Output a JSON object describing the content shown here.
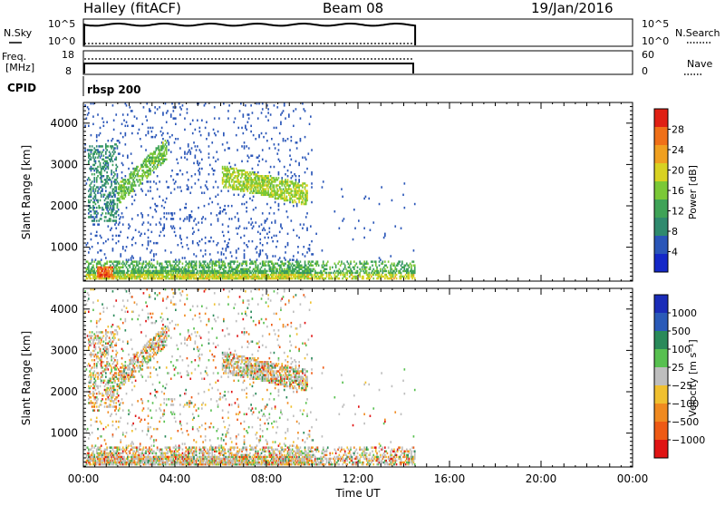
{
  "header": {
    "radar": "Halley (fitACF)",
    "beam": "Beam 08",
    "date": "19/Jan/2016"
  },
  "top_panels": {
    "nsky_label": "N.Sky",
    "nsky_ticks": [
      "10^5",
      "10^0"
    ],
    "nsearch_label": "N.Search",
    "freq_label_1": "Freq.",
    "freq_label_2": "[MHz]",
    "freq_ticks": [
      "18",
      "8"
    ],
    "nave_ticks": [
      "60",
      "0"
    ],
    "nave_label": "Nave",
    "cpid_label": "CPID",
    "cpid_value": "rbsp 200"
  },
  "colors": {
    "power": [
      "#1428c8",
      "#2a56b8",
      "#2f8a6e",
      "#3fa357",
      "#7bc837",
      "#d8d222",
      "#f0a020",
      "#f07018",
      "#e02014"
    ],
    "velocity": [
      "#e01414",
      "#ee5a14",
      "#f08a20",
      "#f0c030",
      "#bebebe",
      "#58c050",
      "#2a8a5a",
      "#2a5ab8",
      "#1a2cb8"
    ]
  },
  "chart_data": [
    {
      "type": "heatmap",
      "quantity": "power",
      "title": "",
      "xlabel": "",
      "ylabel": "Slant Range [km]",
      "xlim_hours": [
        0,
        24
      ],
      "ylim_km": [
        180,
        4500
      ],
      "x_ticks": [
        "00:00",
        "04:00",
        "08:00",
        "12:00",
        "16:00",
        "20:00",
        "00:00"
      ],
      "y_ticks": [
        1000,
        2000,
        3000,
        4000
      ],
      "colorbar": {
        "label": "Power [dB]",
        "ticks": [
          "28",
          "24",
          "20",
          "16",
          "12",
          "8",
          "4"
        ],
        "range_db": [
          0,
          32
        ]
      },
      "data_extent_hours": [
        0,
        14.5
      ],
      "features": [
        {
          "region": "near-range band",
          "t_start": 0.1,
          "t_end": 14.5,
          "range_km": [
            200,
            650
          ],
          "level_db": 16
        },
        {
          "region": "far-range streak A",
          "t_start": 1.0,
          "t_end": 3.6,
          "range_km": [
            2000,
            3400
          ],
          "level_db": 14
        },
        {
          "region": "far-range streak B",
          "t_start": 6.0,
          "t_end": 9.8,
          "range_km": [
            2100,
            3000
          ],
          "level_db": 17
        },
        {
          "region": "mid-range patch",
          "t_start": 0.2,
          "t_end": 1.5,
          "range_km": [
            1600,
            3500
          ],
          "level_db": 8
        },
        {
          "region": "strong echo",
          "t_start": 0.6,
          "t_end": 1.3,
          "range_km": [
            250,
            500
          ],
          "level_db": 26
        }
      ]
    },
    {
      "type": "heatmap",
      "quantity": "velocity",
      "title": "",
      "xlabel": "Time UT",
      "ylabel": "Slant Range [km]",
      "xlim_hours": [
        0,
        24
      ],
      "ylim_km": [
        180,
        4500
      ],
      "x_ticks": [
        "00:00",
        "04:00",
        "08:00",
        "12:00",
        "16:00",
        "20:00",
        "00:00"
      ],
      "y_ticks": [
        1000,
        2000,
        3000,
        4000
      ],
      "colorbar": {
        "label": "Velocity [m s⁻¹]",
        "ticks": [
          "1000",
          "500",
          "100",
          "25",
          "−25",
          "−100",
          "−500",
          "−1000"
        ]
      },
      "data_extent_hours": [
        0,
        14.5
      ],
      "features": [
        {
          "region": "near-range band",
          "t_start": 0.1,
          "t_end": 14.5,
          "range_km": [
            200,
            650
          ],
          "velocity_ms": -50
        },
        {
          "region": "far-range streak A",
          "t_start": 1.0,
          "t_end": 3.6,
          "range_km": [
            2000,
            3400
          ],
          "velocity_ms": 0
        },
        {
          "region": "far-range streak B",
          "t_start": 6.0,
          "t_end": 9.8,
          "range_km": [
            2100,
            3000
          ],
          "velocity_ms": -20
        }
      ]
    }
  ]
}
